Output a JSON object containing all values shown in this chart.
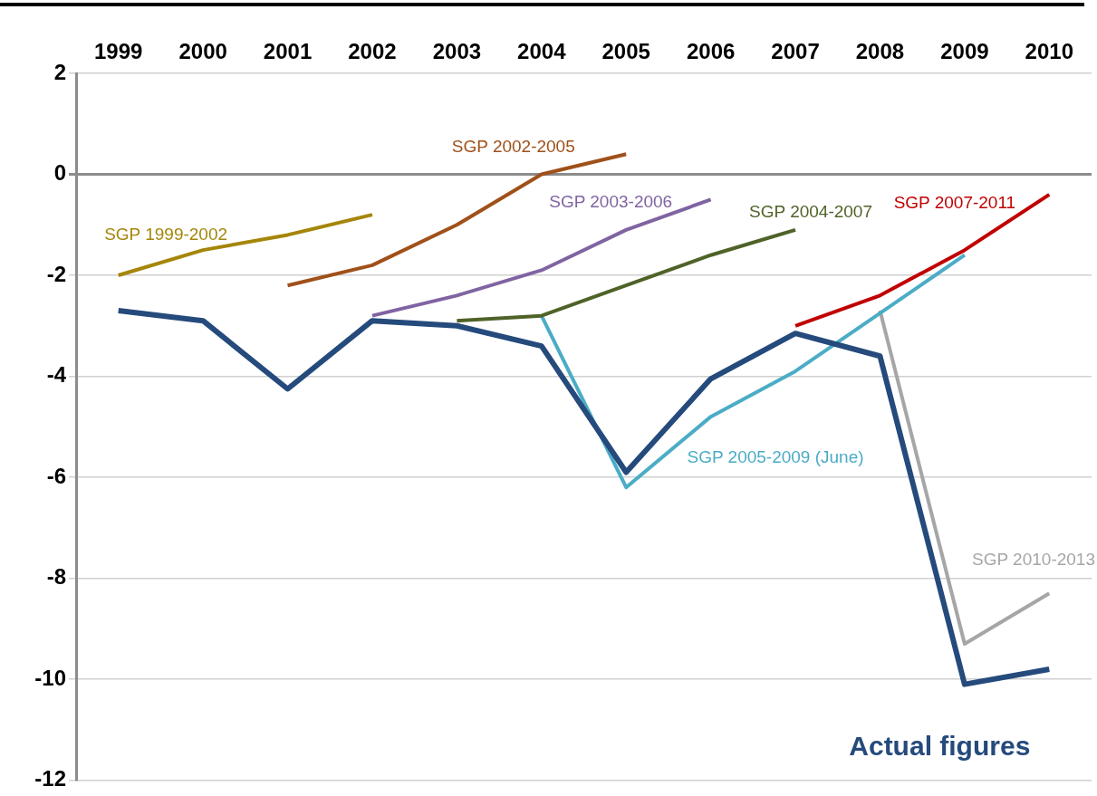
{
  "chart_data": {
    "type": "line",
    "categories": [
      "1999",
      "2000",
      "2001",
      "2002",
      "2003",
      "2004",
      "2005",
      "2006",
      "2007",
      "2008",
      "2009",
      "2010"
    ],
    "series": [
      {
        "name": "Actual figures",
        "color": "#254a7c",
        "values": [
          -2.7,
          -2.9,
          -4.25,
          -2.9,
          -3.0,
          -3.4,
          -5.9,
          -4.05,
          -3.15,
          -3.6,
          -10.1,
          -9.8
        ]
      },
      {
        "name": "SGP 1999-2002",
        "color": "#a5860a",
        "values": [
          -2.0,
          -1.5,
          -1.2,
          -0.8,
          null,
          null,
          null,
          null,
          null,
          null,
          null,
          null
        ]
      },
      {
        "name": "SGP 2002-2005",
        "color": "#a0501a",
        "values": [
          null,
          null,
          -2.2,
          -1.8,
          -1.0,
          0.0,
          0.4,
          null,
          null,
          null,
          null,
          null
        ]
      },
      {
        "name": "SGP 2003-2006",
        "color": "#8064a2",
        "values": [
          null,
          null,
          null,
          -2.8,
          -2.4,
          -1.9,
          -1.1,
          -0.5,
          null,
          null,
          null,
          null
        ]
      },
      {
        "name": "SGP 2004-2007",
        "color": "#4f6228",
        "values": [
          null,
          null,
          null,
          null,
          -2.9,
          -2.8,
          -2.2,
          -1.6,
          -1.1,
          null,
          null,
          null
        ]
      },
      {
        "name": "SGP 2005-2009 (June)",
        "color": "#4bacc6",
        "values": [
          null,
          null,
          null,
          null,
          null,
          -2.8,
          -6.2,
          -4.8,
          -3.9,
          -2.75,
          -1.6,
          null
        ]
      },
      {
        "name": "SGP 2007-2011",
        "color": "#c00000",
        "values": [
          null,
          null,
          null,
          null,
          null,
          null,
          null,
          null,
          -3.0,
          -2.4,
          -1.5,
          -0.4
        ]
      },
      {
        "name": "SGP 2010-2013",
        "color": "#a6a6a6",
        "values": [
          null,
          null,
          null,
          null,
          null,
          null,
          null,
          null,
          null,
          -2.7,
          -9.3,
          -8.3
        ]
      }
    ],
    "ylim": [
      -12,
      2
    ],
    "yticks": [
      -12,
      -10,
      -8,
      -6,
      -4,
      -2,
      0,
      2
    ],
    "grid": "y",
    "legend": false,
    "marker": "none",
    "line_style": "solid"
  }
}
